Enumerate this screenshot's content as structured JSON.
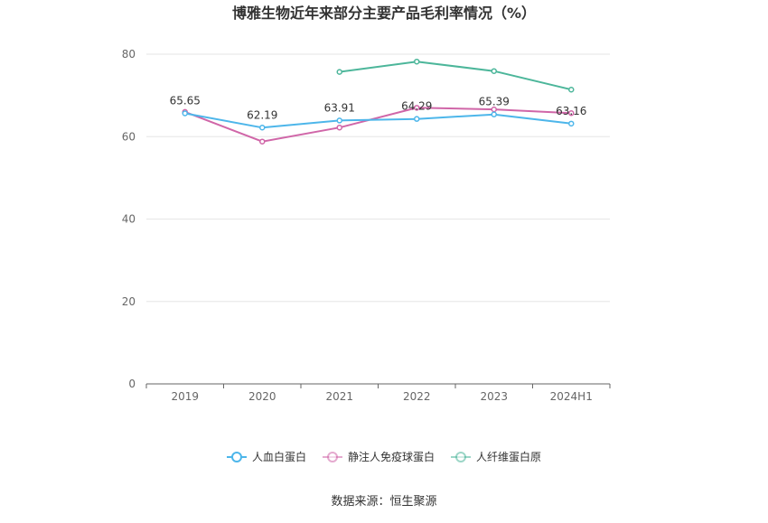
{
  "chart_data": {
    "type": "line",
    "title": "博雅生物近年来部分主要产品毛利率情况（%）",
    "categories": [
      "2019",
      "2020",
      "2021",
      "2022",
      "2023",
      "2024H1"
    ],
    "ylim": [
      0,
      80
    ],
    "yticks": [
      0,
      20,
      40,
      60,
      80
    ],
    "grid": true,
    "legend_position": "bottom",
    "series": [
      {
        "name": "人血白蛋白",
        "color": "#4db6ea",
        "values": [
          65.65,
          62.19,
          63.91,
          64.29,
          65.39,
          63.16
        ],
        "labels": [
          "65.65",
          "62.19",
          "63.91",
          "64.29",
          "65.39",
          "63.16"
        ]
      },
      {
        "name": "静注人免疫球蛋白",
        "color": "#d066a8",
        "values": [
          66.0,
          58.8,
          62.2,
          67.0,
          66.6,
          65.7
        ]
      },
      {
        "name": "人纤维蛋白原",
        "color": "#4cb69a",
        "values": [
          null,
          null,
          75.7,
          78.2,
          75.9,
          71.4
        ]
      }
    ],
    "source": "数据来源：恒生聚源"
  }
}
